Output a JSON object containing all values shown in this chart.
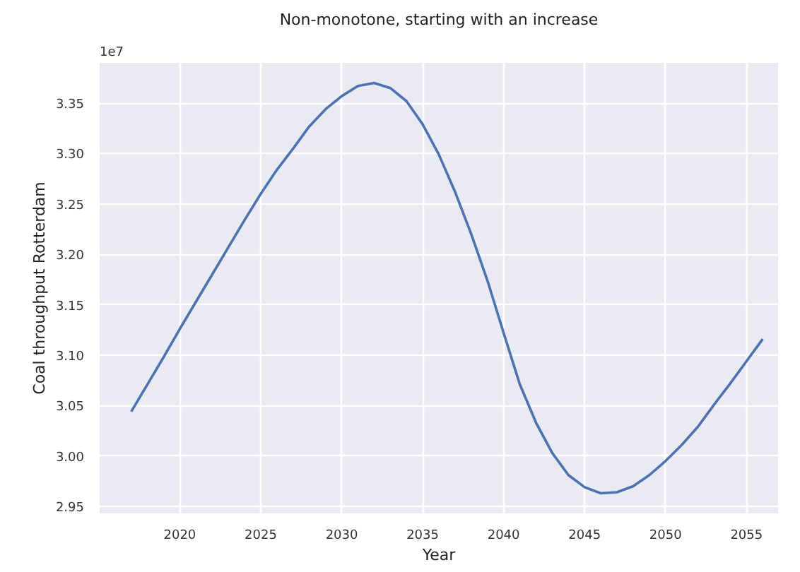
{
  "chart_data": {
    "type": "line",
    "title": "Non-monotone, starting with an increase",
    "xlabel": "Year",
    "ylabel": "Coal throughput Rotterdam",
    "annotations": [
      "1e7"
    ],
    "x": [
      2017,
      2018,
      2019,
      2020,
      2021,
      2022,
      2023,
      2024,
      2025,
      2026,
      2027,
      2028,
      2029,
      2030,
      2031,
      2032,
      2033,
      2034,
      2035,
      2036,
      2037,
      2038,
      2039,
      2040,
      2041,
      2042,
      2043,
      2044,
      2045,
      2046,
      2047,
      2048,
      2049,
      2050,
      2051,
      2052,
      2053,
      2054,
      2055,
      2056
    ],
    "series": [
      {
        "color": "#4c72b0",
        "values": [
          3.044,
          3.071,
          3.098,
          3.126,
          3.153,
          3.18,
          3.207,
          3.234,
          3.26,
          3.284,
          3.305,
          3.327,
          3.344,
          3.357,
          3.367,
          3.37,
          3.365,
          3.352,
          3.329,
          3.299,
          3.262,
          3.22,
          3.174,
          3.122,
          3.071,
          3.033,
          3.003,
          2.981,
          2.969,
          2.963,
          2.964,
          2.97,
          2.981,
          2.995,
          3.011,
          3.029,
          3.051,
          3.072,
          3.094,
          3.116
        ]
      }
    ],
    "xlim": [
      2015.05,
      2056.95
    ],
    "ylim": [
      2.943,
      3.39
    ],
    "xticks": [
      2020,
      2025,
      2030,
      2035,
      2040,
      2045,
      2050,
      2055
    ],
    "yticks": [
      {
        "value": 2.95,
        "label": "2.95"
      },
      {
        "value": 3.0,
        "label": "3.00"
      },
      {
        "value": 3.05,
        "label": "3.05"
      },
      {
        "value": 3.1,
        "label": "3.10"
      },
      {
        "value": 3.15,
        "label": "3.15"
      },
      {
        "value": 3.2,
        "label": "3.20"
      },
      {
        "value": 3.25,
        "label": "3.25"
      },
      {
        "value": 3.3,
        "label": "3.30"
      },
      {
        "value": 3.35,
        "label": "3.35"
      }
    ],
    "grid": true
  }
}
